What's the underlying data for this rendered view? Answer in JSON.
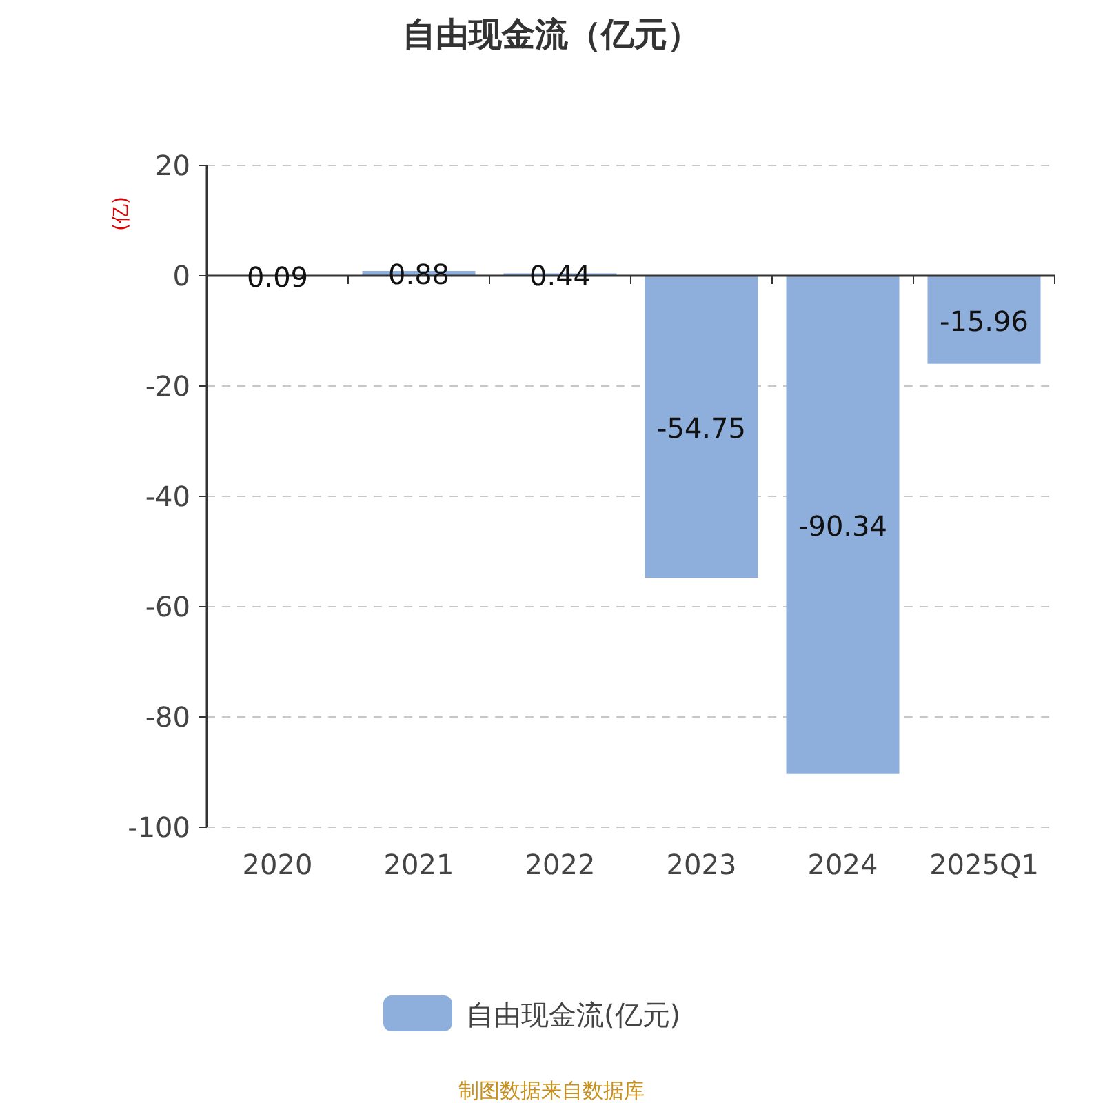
{
  "chart_data": {
    "type": "bar",
    "title": "自由现金流（亿元）",
    "ylabel": "(亿)",
    "categories": [
      "2020",
      "2021",
      "2022",
      "2023",
      "2024",
      "2025Q1"
    ],
    "series": [
      {
        "name": "自由现金流(亿元)",
        "color": "#8eaedb",
        "values": [
          0.09,
          0.88,
          0.44,
          -54.75,
          -90.34,
          -15.96
        ]
      }
    ],
    "ylim": [
      -100,
      20
    ],
    "yticks": [
      -100,
      -80,
      -60,
      -40,
      -20,
      0,
      20
    ],
    "grid": "y",
    "legend": "bottom",
    "data_labels": true,
    "annotations": [
      "制图数据来自数据库"
    ]
  }
}
